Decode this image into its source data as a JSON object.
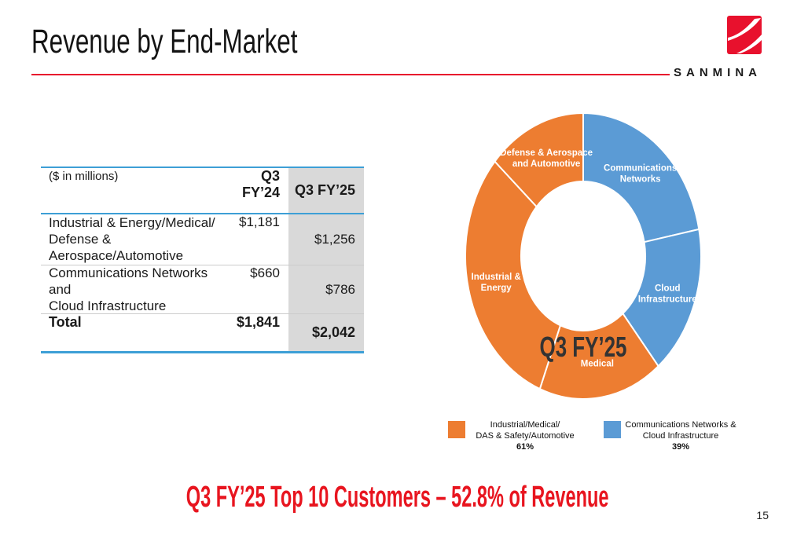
{
  "slide": {
    "title": "Revenue by End-Market",
    "footer_highlight": "Q3 FY’25 Top 10 Customers – 52.8% of Revenue",
    "page_number": "15",
    "brand": {
      "name": "SANMINA"
    },
    "colors": {
      "accent_red": "#E8112D",
      "footer_red": "#E8151F",
      "table_border_blue": "#3D9FD6",
      "shaded_column_gray": "#D9D9D9",
      "orange": "#ED7D31",
      "blue": "#5B9BD5"
    }
  },
  "table": {
    "header": {
      "label": "($ in millions)",
      "col1": "Q3 FY’24",
      "col2": "Q3 FY’25"
    },
    "rows": [
      {
        "label_line1": "Industrial & Energy/Medical/",
        "label_line2": "Defense & Aerospace/Automotive",
        "q3fy24": "$1,181",
        "q3fy25": "$1,256"
      },
      {
        "label_line1": "Communications Networks and",
        "label_line2": "Cloud Infrastructure",
        "q3fy24": "$660",
        "q3fy25": "$786"
      }
    ],
    "total": {
      "label": "Total",
      "q3fy24": "$1,841",
      "q3fy25": "$2,042"
    }
  },
  "chart_data": {
    "type": "pie",
    "donut": true,
    "title": "Q3 FY’25 Revenue by End-Market",
    "center_label": "Q3 FY’25",
    "legend_position": "bottom",
    "segments": [
      {
        "label": "Communications Networks",
        "label_lines": [
          "Communications",
          "Networks"
        ],
        "value": 22,
        "color": "#5B9BD5"
      },
      {
        "label": "Cloud Infrastructure",
        "label_lines": [
          "Cloud",
          "Infrastructure"
        ],
        "value": 17,
        "color": "#5B9BD5"
      },
      {
        "label": "Medical",
        "label_lines": [
          "Medical"
        ],
        "value": 17,
        "color": "#ED7D31"
      },
      {
        "label": "Industrial & Energy",
        "label_lines": [
          "Industrial &",
          "Energy"
        ],
        "value": 30.5,
        "color": "#ED7D31"
      },
      {
        "label": "Defense & Aerospace and Automotive",
        "label_lines": [
          "Defense & Aerospace",
          "and Automotive"
        ],
        "value": 13.5,
        "color": "#ED7D31"
      }
    ],
    "groups": [
      {
        "name": "Industrial/Medical/DAS & Safety/Automotive",
        "pct": "61%"
      },
      {
        "name": "Communications Networks & Cloud Infrastructure",
        "pct": "39%"
      }
    ],
    "legend": [
      {
        "color": "#ED7D31",
        "line1": "Industrial/Medical/",
        "line2": "DAS & Safety/Automotive",
        "pct": "61%"
      },
      {
        "color": "#5B9BD5",
        "line1": "Communications Networks &",
        "line2": "Cloud Infrastructure",
        "pct": "39%"
      }
    ]
  }
}
